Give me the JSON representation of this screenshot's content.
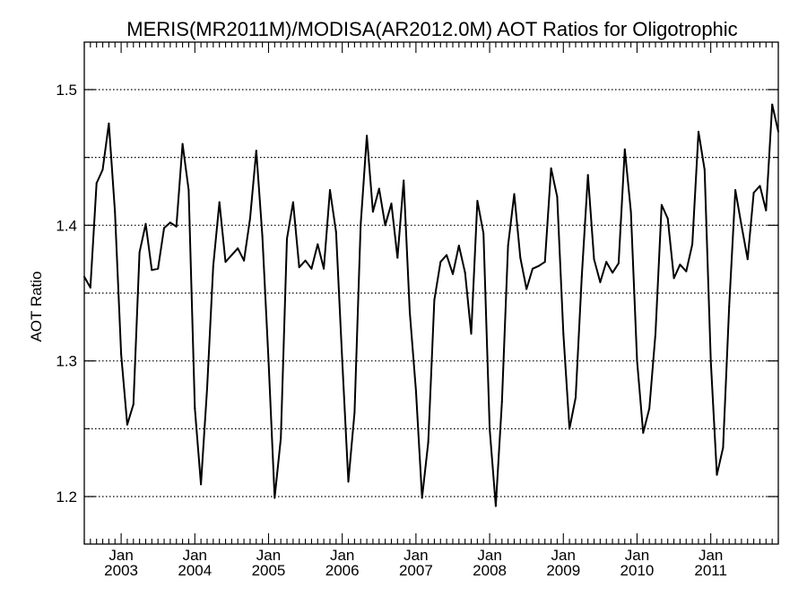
{
  "chart_data": {
    "type": "line",
    "title": "MERIS(MR2011M)/MODISA(AR2012.0M)  AOT Ratios for Oligotrophic",
    "xlabel": "",
    "ylabel": "AOT Ratio",
    "x_range": [
      "2002-07",
      "2011-12"
    ],
    "ylim": [
      1.165,
      1.535
    ],
    "yticks": [
      1.2,
      1.3,
      1.4,
      1.5
    ],
    "ytick_labels": [
      "1.2",
      "1.3",
      "1.4",
      "1.5"
    ],
    "grid_y": [
      1.2,
      1.25,
      1.3,
      1.35,
      1.4,
      1.45,
      1.5
    ],
    "grid_style": "dotted",
    "xtick_labels": [
      {
        "month": "Jan",
        "year": "2003",
        "date": "2003-01"
      },
      {
        "month": "Jan",
        "year": "2004",
        "date": "2004-01"
      },
      {
        "month": "Jan",
        "year": "2005",
        "date": "2005-01"
      },
      {
        "month": "Jan",
        "year": "2006",
        "date": "2006-01"
      },
      {
        "month": "Jan",
        "year": "2007",
        "date": "2007-01"
      },
      {
        "month": "Jan",
        "year": "2008",
        "date": "2008-01"
      },
      {
        "month": "Jan",
        "year": "2009",
        "date": "2009-01"
      },
      {
        "month": "Jan",
        "year": "2010",
        "date": "2010-01"
      },
      {
        "month": "Jan",
        "year": "2011",
        "date": "2011-01"
      }
    ],
    "line_color": "#000000",
    "series": [
      {
        "x": [
          "2002-07",
          "2002-08",
          "2002-09",
          "2002-10",
          "2002-11",
          "2002-12",
          "2003-01",
          "2003-02",
          "2003-03",
          "2003-04",
          "2003-05",
          "2003-06",
          "2003-07",
          "2003-08",
          "2003-09",
          "2003-10",
          "2003-11",
          "2003-12",
          "2004-01",
          "2004-02",
          "2004-03",
          "2004-04",
          "2004-05",
          "2004-06",
          "2004-07",
          "2004-08",
          "2004-09",
          "2004-10",
          "2004-11",
          "2004-12",
          "2005-01",
          "2005-02",
          "2005-03",
          "2005-04",
          "2005-05",
          "2005-06",
          "2005-07",
          "2005-08",
          "2005-09",
          "2005-10",
          "2005-11",
          "2005-12",
          "2006-01",
          "2006-02",
          "2006-03",
          "2006-04",
          "2006-05",
          "2006-06",
          "2006-07",
          "2006-08",
          "2006-09",
          "2006-10",
          "2006-11",
          "2006-12",
          "2007-01",
          "2007-02",
          "2007-03",
          "2007-04",
          "2007-05",
          "2007-06",
          "2007-07",
          "2007-08",
          "2007-09",
          "2007-10",
          "2007-11",
          "2007-12",
          "2008-01",
          "2008-02",
          "2008-03",
          "2008-04",
          "2008-05",
          "2008-06",
          "2008-07",
          "2008-08",
          "2008-09",
          "2008-10",
          "2008-11",
          "2008-12",
          "2009-01",
          "2009-02",
          "2009-03",
          "2009-04",
          "2009-05",
          "2009-06",
          "2009-07",
          "2009-08",
          "2009-09",
          "2009-10",
          "2009-11",
          "2009-12",
          "2010-01",
          "2010-02",
          "2010-03",
          "2010-04",
          "2010-05",
          "2010-06",
          "2010-07",
          "2010-08",
          "2010-09",
          "2010-10",
          "2010-11",
          "2010-12",
          "2011-01",
          "2011-02",
          "2011-03",
          "2011-04",
          "2011-05",
          "2011-06",
          "2011-07",
          "2011-08",
          "2011-09",
          "2011-10",
          "2011-11",
          "2011-12"
        ],
        "values": [
          1.362,
          1.354,
          1.431,
          1.441,
          1.475,
          1.41,
          1.305,
          1.253,
          1.268,
          1.38,
          1.401,
          1.367,
          1.368,
          1.398,
          1.402,
          1.399,
          1.46,
          1.426,
          1.265,
          1.209,
          1.28,
          1.37,
          1.417,
          1.373,
          1.378,
          1.383,
          1.374,
          1.405,
          1.455,
          1.392,
          1.3,
          1.199,
          1.243,
          1.39,
          1.417,
          1.369,
          1.374,
          1.368,
          1.386,
          1.368,
          1.426,
          1.395,
          1.3,
          1.211,
          1.262,
          1.4,
          1.466,
          1.41,
          1.427,
          1.4,
          1.416,
          1.376,
          1.433,
          1.336,
          1.278,
          1.199,
          1.24,
          1.345,
          1.373,
          1.378,
          1.364,
          1.385,
          1.365,
          1.32,
          1.418,
          1.394,
          1.25,
          1.193,
          1.27,
          1.385,
          1.423,
          1.376,
          1.353,
          1.368,
          1.37,
          1.373,
          1.442,
          1.421,
          1.32,
          1.25,
          1.273,
          1.362,
          1.437,
          1.375,
          1.358,
          1.373,
          1.365,
          1.372,
          1.456,
          1.41,
          1.3,
          1.247,
          1.265,
          1.32,
          1.415,
          1.405,
          1.361,
          1.371,
          1.366,
          1.386,
          1.469,
          1.441,
          1.3,
          1.216,
          1.236,
          1.34,
          1.426,
          1.4,
          1.375,
          1.424,
          1.429,
          1.411,
          1.489,
          1.469
        ]
      }
    ]
  }
}
